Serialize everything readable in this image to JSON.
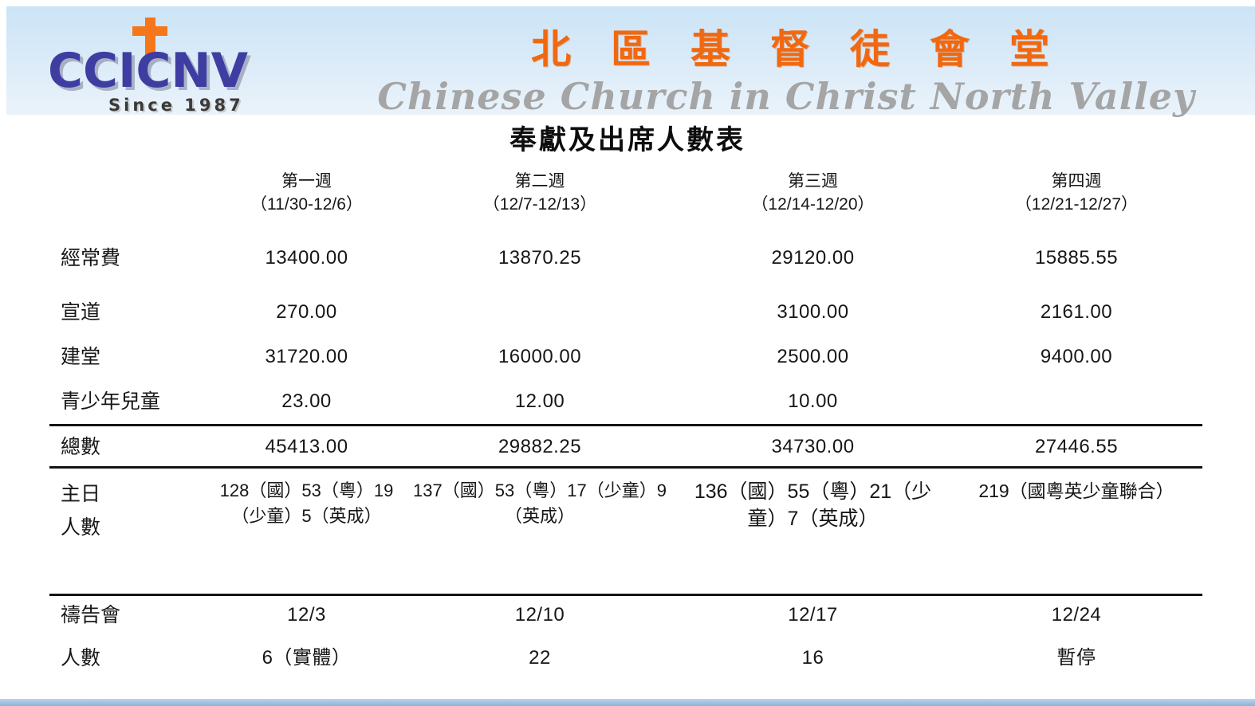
{
  "header": {
    "logo": {
      "name": "CCICNV",
      "tagline": "Since 1987"
    },
    "church_name_zh": "北區基督徒會堂",
    "church_name_en": "Chinese Church in Christ North Valley",
    "colors": {
      "accent_orange": "#F2680F",
      "logo_blue": "#3D3DA2",
      "banner_blue": "#CBE4F6",
      "script_gray": "#A5A5A5",
      "bottom_bar_blue": "#8DB1D6"
    }
  },
  "page": {
    "title": "奉獻及出席人數表"
  },
  "table": {
    "columns": [
      {
        "week": "第一週",
        "dates": "（11/30-12/6）"
      },
      {
        "week": "第二週",
        "dates": "（12/7-12/13）"
      },
      {
        "week": "第三週",
        "dates": "（12/14-12/20）"
      },
      {
        "week": "第四週",
        "dates": "（12/21-12/27）"
      }
    ],
    "offerings": [
      {
        "label": "經常費",
        "values": [
          "13400.00",
          "13870.25",
          "29120.00",
          "15885.55"
        ]
      },
      {
        "label": "宣道",
        "values": [
          "270.00",
          "",
          "3100.00",
          "2161.00"
        ]
      },
      {
        "label": "建堂",
        "values": [
          "31720.00",
          "16000.00",
          "2500.00",
          "9400.00"
        ]
      },
      {
        "label": "青少年兒童",
        "values": [
          "23.00",
          "12.00",
          "10.00",
          ""
        ]
      }
    ],
    "total": {
      "label": "總數",
      "values": [
        "45413.00",
        "29882.25",
        "34730.00",
        "27446.55"
      ]
    },
    "sunday_attendance": {
      "label_line1": "主日",
      "label_line2": "人數",
      "values": [
        "128（國）53（粵）19（少童）5（英成）",
        "137（國）53（粵）17（少童）9（英成）",
        "136（國）55（粵）21（少童）7（英成）",
        "219（國粵英少童聯合）"
      ]
    },
    "prayer_meeting": {
      "label": "禱告會",
      "values": [
        "12/3",
        "12/10",
        "12/17",
        "12/24"
      ]
    },
    "prayer_attendance": {
      "label": "人數",
      "values": [
        "6（實體）",
        "22",
        "16",
        "暫停"
      ]
    }
  }
}
